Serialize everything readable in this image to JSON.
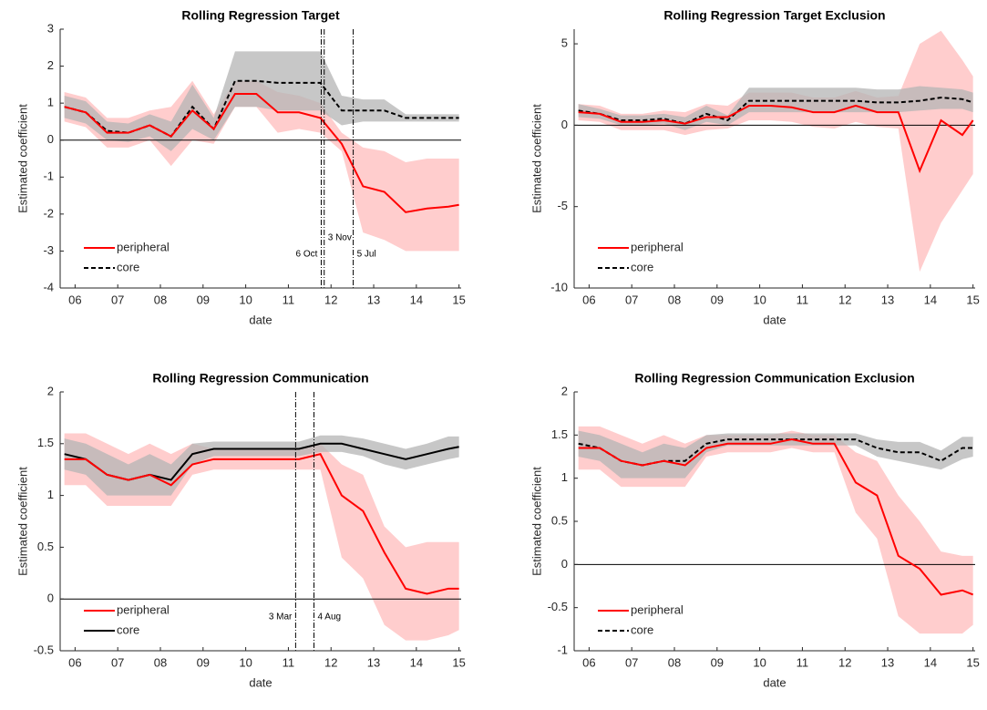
{
  "chart_data": [
    {
      "type": "line",
      "title": "Rolling Regression Target",
      "xlabel": "date",
      "ylabel": "Estimated coefficient",
      "x": [
        5.75,
        6.25,
        6.75,
        7.25,
        7.75,
        8.25,
        8.75,
        9.25,
        9.75,
        10.25,
        10.75,
        11.25,
        11.75,
        12.25,
        12.75,
        13.25,
        13.75,
        14.25,
        14.75,
        15
      ],
      "xlim": [
        5.65,
        15.05
      ],
      "xticks": [
        {
          "value": 6,
          "label": "06"
        },
        {
          "value": 7,
          "label": "07"
        },
        {
          "value": 8,
          "label": "08"
        },
        {
          "value": 9,
          "label": "09"
        },
        10,
        11,
        12,
        13,
        14,
        15
      ],
      "ylim": [
        -4,
        3
      ],
      "yticks": [
        -4,
        -3,
        -2,
        -1,
        0,
        1,
        2,
        3
      ],
      "hline": 0,
      "legend": "lower left",
      "vlines": [
        {
          "x": 11.77,
          "label": "6 Oct"
        },
        {
          "x": 11.84,
          "label": "3 Nov"
        },
        {
          "x": 12.52,
          "label": "5 Jul"
        }
      ],
      "series": [
        {
          "name": "peripheral",
          "color": "#ff0000",
          "band_color": "#ffbcbc",
          "line_style": "solid",
          "values": [
            0.9,
            0.75,
            0.2,
            0.2,
            0.4,
            0.1,
            0.8,
            0.3,
            1.25,
            1.25,
            0.75,
            0.75,
            0.6,
            -0.1,
            -1.25,
            -1.4,
            -1.95,
            -1.85,
            -1.8,
            -1.75
          ],
          "lower": [
            0.5,
            0.35,
            -0.2,
            -0.2,
            0,
            -0.7,
            0,
            -0.1,
            0.9,
            0.9,
            0.2,
            0.3,
            0.2,
            -0.3,
            -2.5,
            -2.7,
            -3,
            -3,
            -3,
            -3
          ],
          "upper": [
            1.3,
            1.15,
            0.6,
            0.6,
            0.8,
            0.9,
            1.6,
            0.7,
            1.6,
            1.6,
            1.3,
            1.2,
            1,
            0.2,
            -0.2,
            -0.3,
            -0.6,
            -0.5,
            -0.5,
            -0.5
          ]
        },
        {
          "name": "core",
          "color": "#000000",
          "band_color": "#b4b4b4",
          "line_style": "dashed",
          "values": [
            0.9,
            0.75,
            0.25,
            0.2,
            0.4,
            0.1,
            0.9,
            0.3,
            1.6,
            1.6,
            1.55,
            1.55,
            1.55,
            0.8,
            0.8,
            0.8,
            0.6,
            0.6,
            0.6,
            0.6
          ],
          "lower": [
            0.6,
            0.45,
            0,
            -0.05,
            0.1,
            -0.3,
            0.3,
            0,
            0.9,
            0.9,
            0.8,
            0.8,
            0.8,
            0.4,
            0.5,
            0.5,
            0.5,
            0.5,
            0.5,
            0.5
          ],
          "upper": [
            1.2,
            1.05,
            0.5,
            0.45,
            0.7,
            0.5,
            1.5,
            0.6,
            2.4,
            2.4,
            2.4,
            2.4,
            2.4,
            1.2,
            1.1,
            1.1,
            0.7,
            0.7,
            0.7,
            0.7
          ]
        }
      ]
    },
    {
      "type": "line",
      "title": "Rolling Regression Target Exclusion",
      "xlabel": "date",
      "ylabel": "Estimated coefficient",
      "x": [
        5.75,
        6.25,
        6.75,
        7.25,
        7.75,
        8.25,
        8.75,
        9.25,
        9.75,
        10.25,
        10.75,
        11.25,
        11.75,
        12.25,
        12.75,
        13.25,
        13.75,
        14.25,
        14.75,
        15
      ],
      "xlim": [
        5.65,
        15.05
      ],
      "xticks": [
        {
          "value": 6,
          "label": "06"
        },
        {
          "value": 7,
          "label": "07"
        },
        {
          "value": 8,
          "label": "08"
        },
        {
          "value": 9,
          "label": "09"
        },
        10,
        11,
        12,
        13,
        14,
        15
      ],
      "ylim": [
        -10,
        5.9
      ],
      "yticks": [
        -10,
        -5,
        0,
        5
      ],
      "hline": 0,
      "legend": "lower left",
      "vlines": [],
      "series": [
        {
          "name": "peripheral",
          "color": "#ff0000",
          "band_color": "#ffbcbc",
          "line_style": "solid",
          "values": [
            0.8,
            0.7,
            0.2,
            0.2,
            0.3,
            0.1,
            0.5,
            0.5,
            1.2,
            1.2,
            1.1,
            0.8,
            0.8,
            1.2,
            0.8,
            0.8,
            -2.8,
            0.3,
            -0.6,
            0.3
          ],
          "lower": [
            0.3,
            0.2,
            -0.3,
            -0.3,
            -0.3,
            -0.6,
            -0.3,
            -0.2,
            0.3,
            0.3,
            0.2,
            -0.1,
            -0.2,
            0.2,
            -0.1,
            -0.2,
            -9,
            -6,
            -4,
            -3
          ],
          "upper": [
            1.3,
            1.2,
            0.7,
            0.7,
            0.9,
            0.8,
            1.3,
            1.2,
            2,
            2,
            2,
            1.7,
            1.7,
            2.1,
            1.7,
            1.8,
            5,
            5.8,
            4,
            3
          ]
        },
        {
          "name": "core",
          "color": "#000000",
          "band_color": "#b4b4b4",
          "line_style": "dashed",
          "values": [
            0.9,
            0.7,
            0.3,
            0.3,
            0.4,
            0.1,
            0.7,
            0.3,
            1.5,
            1.5,
            1.5,
            1.5,
            1.5,
            1.5,
            1.4,
            1.4,
            1.5,
            1.7,
            1.6,
            1.4
          ],
          "lower": [
            0.5,
            0.4,
            0,
            0,
            0.1,
            -0.3,
            0.2,
            0,
            0.8,
            0.8,
            0.8,
            0.8,
            0.8,
            0.8,
            0.8,
            0.8,
            0.9,
            1,
            1,
            0.8
          ],
          "upper": [
            1.3,
            1,
            0.6,
            0.6,
            0.7,
            0.5,
            1.2,
            0.6,
            2.3,
            2.3,
            2.3,
            2.3,
            2.3,
            2.3,
            2.2,
            2.2,
            2.4,
            2.3,
            2.2,
            2
          ]
        }
      ]
    },
    {
      "type": "line",
      "title": "Rolling Regression Communication",
      "xlabel": "date",
      "ylabel": "Estimated coefficient",
      "x": [
        5.75,
        6.25,
        6.75,
        7.25,
        7.75,
        8.25,
        8.75,
        9.25,
        9.75,
        10.25,
        10.75,
        11.25,
        11.75,
        12.25,
        12.75,
        13.25,
        13.75,
        14.25,
        14.75,
        15
      ],
      "xlim": [
        5.65,
        15.05
      ],
      "xticks": [
        {
          "value": 6,
          "label": "06"
        },
        {
          "value": 7,
          "label": "07"
        },
        {
          "value": 8,
          "label": "08"
        },
        {
          "value": 9,
          "label": "09"
        },
        10,
        11,
        12,
        13,
        14,
        15
      ],
      "ylim": [
        -0.5,
        2
      ],
      "yticks": [
        -0.5,
        0,
        0.5,
        1,
        1.5,
        2
      ],
      "hline": 0,
      "legend": "lower left",
      "vlines": [
        {
          "x": 11.17,
          "label": "3 Mar"
        },
        {
          "x": 11.6,
          "label": "4 Aug"
        }
      ],
      "series": [
        {
          "name": "peripheral",
          "color": "#ff0000",
          "band_color": "#ffbcbc",
          "line_style": "solid",
          "values": [
            1.35,
            1.35,
            1.2,
            1.15,
            1.2,
            1.1,
            1.3,
            1.35,
            1.35,
            1.35,
            1.35,
            1.35,
            1.4,
            1,
            0.85,
            0.45,
            0.1,
            0.05,
            0.1,
            0.1
          ],
          "lower": [
            1.1,
            1.1,
            0.9,
            0.9,
            0.9,
            0.9,
            1.2,
            1.25,
            1.25,
            1.25,
            1.25,
            1.25,
            1.25,
            0.4,
            0.2,
            -0.25,
            -0.4,
            -0.4,
            -0.35,
            -0.3
          ],
          "upper": [
            1.6,
            1.6,
            1.5,
            1.4,
            1.5,
            1.4,
            1.5,
            1.45,
            1.45,
            1.45,
            1.45,
            1.45,
            1.5,
            1.3,
            1.2,
            0.7,
            0.5,
            0.55,
            0.55,
            0.55
          ]
        },
        {
          "name": "core",
          "color": "#000000",
          "band_color": "#b4b4b4",
          "line_style": "solid",
          "values": [
            1.4,
            1.35,
            1.2,
            1.15,
            1.2,
            1.15,
            1.4,
            1.45,
            1.45,
            1.45,
            1.45,
            1.45,
            1.5,
            1.5,
            1.45,
            1.4,
            1.35,
            1.4,
            1.45,
            1.47
          ],
          "lower": [
            1.25,
            1.2,
            1,
            1,
            1,
            1,
            1.3,
            1.38,
            1.38,
            1.38,
            1.38,
            1.38,
            1.42,
            1.42,
            1.38,
            1.3,
            1.25,
            1.3,
            1.35,
            1.37
          ],
          "upper": [
            1.55,
            1.5,
            1.4,
            1.3,
            1.4,
            1.3,
            1.5,
            1.52,
            1.52,
            1.52,
            1.52,
            1.52,
            1.58,
            1.58,
            1.55,
            1.5,
            1.45,
            1.5,
            1.57,
            1.57
          ]
        }
      ]
    },
    {
      "type": "line",
      "title": "Rolling Regression Communication Exclusion",
      "xlabel": "date",
      "ylabel": "Estimated coefficient",
      "x": [
        5.75,
        6.25,
        6.75,
        7.25,
        7.75,
        8.25,
        8.75,
        9.25,
        9.75,
        10.25,
        10.75,
        11.25,
        11.75,
        12.25,
        12.75,
        13.25,
        13.75,
        14.25,
        14.75,
        15
      ],
      "xlim": [
        5.65,
        15.05
      ],
      "xticks": [
        {
          "value": 6,
          "label": "06"
        },
        {
          "value": 7,
          "label": "07"
        },
        {
          "value": 8,
          "label": "08"
        },
        {
          "value": 9,
          "label": "09"
        },
        10,
        11,
        12,
        13,
        14,
        15
      ],
      "ylim": [
        -1,
        2
      ],
      "yticks": [
        -1,
        -0.5,
        0,
        0.5,
        1,
        1.5,
        2
      ],
      "hline": 0,
      "legend": "lower left",
      "vlines": [],
      "series": [
        {
          "name": "peripheral",
          "color": "#ff0000",
          "band_color": "#ffbcbc",
          "line_style": "solid",
          "values": [
            1.35,
            1.35,
            1.2,
            1.15,
            1.2,
            1.15,
            1.35,
            1.4,
            1.4,
            1.4,
            1.45,
            1.4,
            1.4,
            0.95,
            0.8,
            0.1,
            -0.05,
            -0.35,
            -0.3,
            -0.35
          ],
          "lower": [
            1.1,
            1.1,
            0.9,
            0.9,
            0.9,
            0.9,
            1.25,
            1.3,
            1.3,
            1.3,
            1.35,
            1.3,
            1.3,
            0.6,
            0.3,
            -0.6,
            -0.8,
            -0.8,
            -0.8,
            -0.7
          ],
          "upper": [
            1.6,
            1.6,
            1.5,
            1.4,
            1.5,
            1.4,
            1.5,
            1.5,
            1.5,
            1.5,
            1.55,
            1.5,
            1.5,
            1.3,
            1.2,
            0.8,
            0.5,
            0.15,
            0.1,
            0.1
          ]
        },
        {
          "name": "core",
          "color": "#000000",
          "band_color": "#b4b4b4",
          "line_style": "dashed",
          "values": [
            1.4,
            1.35,
            1.2,
            1.15,
            1.2,
            1.2,
            1.4,
            1.45,
            1.45,
            1.45,
            1.45,
            1.45,
            1.45,
            1.45,
            1.35,
            1.3,
            1.3,
            1.2,
            1.35,
            1.35
          ],
          "lower": [
            1.25,
            1.2,
            1,
            1,
            1,
            1,
            1.3,
            1.38,
            1.38,
            1.38,
            1.38,
            1.38,
            1.38,
            1.38,
            1.25,
            1.2,
            1.15,
            1.1,
            1.22,
            1.25
          ],
          "upper": [
            1.55,
            1.5,
            1.4,
            1.3,
            1.4,
            1.35,
            1.5,
            1.52,
            1.52,
            1.52,
            1.52,
            1.52,
            1.52,
            1.52,
            1.45,
            1.42,
            1.42,
            1.32,
            1.48,
            1.48
          ]
        }
      ]
    }
  ]
}
